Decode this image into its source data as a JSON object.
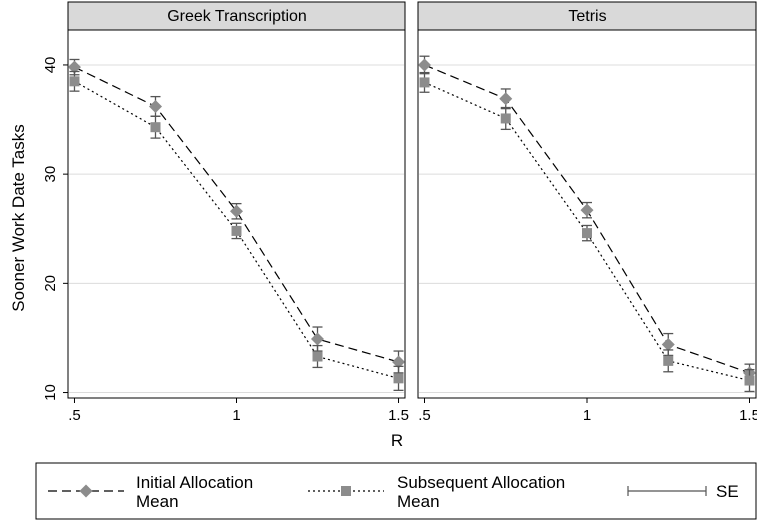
{
  "chart_data": {
    "type": "line",
    "ylabel": "Sooner Work Date Tasks",
    "xlabel": "R",
    "x": [
      0.5,
      0.75,
      1,
      1.25,
      1.5
    ],
    "x_tick_labels": [
      ".5",
      "1",
      "1.5"
    ],
    "x_tick_values": [
      0.5,
      1,
      1.5
    ],
    "y_ticks": [
      10,
      20,
      30,
      40
    ],
    "xlim": [
      0.48,
      1.52
    ],
    "ylim": [
      9.5,
      43.2
    ],
    "grid": true,
    "legend_position": "bottom",
    "colors": {
      "marker": "#8c8c8c",
      "panel_header": "#d9d9d9",
      "grid": "#dcdcdc"
    },
    "legend": [
      {
        "line1": "Initial Allocation",
        "line2": "Mean"
      },
      {
        "line1": "Subsequent Allocation",
        "line2": "Mean"
      },
      {
        "line1": "SE"
      }
    ],
    "panels": [
      {
        "title": "Greek Transcription",
        "series": [
          {
            "name": "Initial Allocation Mean",
            "marker": "diamond",
            "values": [
              39.8,
              36.2,
              26.6,
              14.9,
              12.8
            ],
            "se": [
              0.7,
              0.9,
              0.7,
              1.1,
              1.0
            ]
          },
          {
            "name": "Subsequent Allocation Mean",
            "marker": "square",
            "values": [
              38.5,
              34.3,
              24.8,
              13.3,
              11.3
            ],
            "se": [
              0.9,
              1.0,
              0.7,
              1.0,
              1.1
            ]
          }
        ]
      },
      {
        "title": "Tetris",
        "series": [
          {
            "name": "Initial Allocation Mean",
            "marker": "diamond",
            "values": [
              40.0,
              36.9,
              26.7,
              14.4,
              11.8
            ],
            "se": [
              0.8,
              0.9,
              0.7,
              1.0,
              0.8
            ]
          },
          {
            "name": "Subsequent Allocation Mean",
            "marker": "square",
            "values": [
              38.4,
              35.1,
              24.6,
              12.9,
              11.1
            ],
            "se": [
              0.9,
              1.0,
              0.7,
              1.0,
              1.0
            ]
          }
        ]
      }
    ]
  }
}
